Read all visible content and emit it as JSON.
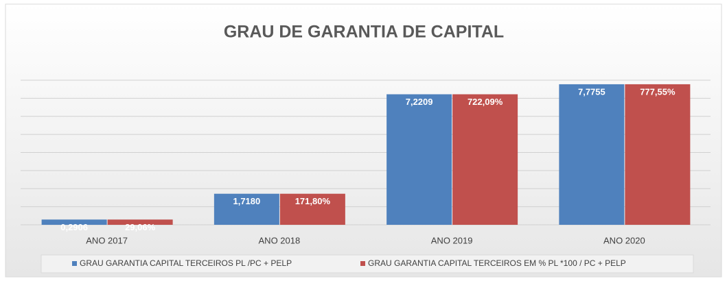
{
  "chart_data": {
    "type": "bar",
    "title": "GRAU DE GARANTIA DE CAPITAL",
    "categories": [
      "ANO 2017",
      "ANO 2018",
      "ANO 2019",
      "ANO 2020"
    ],
    "series": [
      {
        "name": "GRAU GARANTIA CAPITAL TERCEIROS PL /PC + PELP",
        "color": "#4f81bd",
        "values": [
          0.2906,
          1.718,
          7.2209,
          7.7755
        ],
        "value_labels": [
          "0,2906",
          "1,7180",
          "7,2209",
          "7,7755"
        ]
      },
      {
        "name": "GRAU GARANTIA CAPITAL TERCEIROS EM % PL *100 / PC + PELP",
        "color": "#c0504d",
        "axis": "y2",
        "values": [
          29.06,
          171.8,
          722.09,
          777.55
        ],
        "value_labels": [
          "29,06%",
          "171,80%",
          "722,09%",
          "777,55%"
        ]
      }
    ],
    "ylim": [
      0,
      8
    ],
    "yticks": [
      0,
      1,
      2,
      3,
      4,
      5,
      6,
      7,
      8
    ],
    "y2lim": [
      0,
      800
    ],
    "grid": true
  }
}
